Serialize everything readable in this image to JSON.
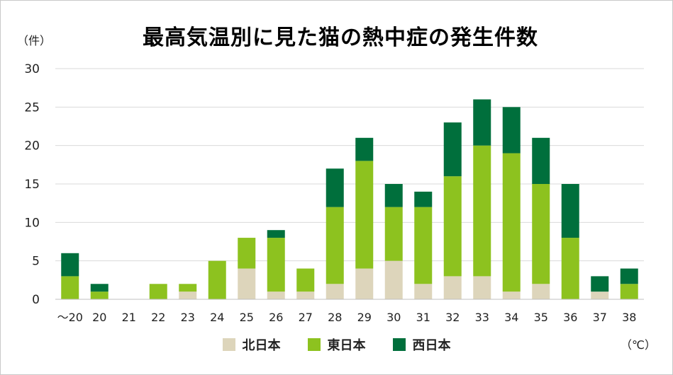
{
  "chart_data": {
    "type": "bar",
    "stacked": true,
    "title": "最高気温別に見た猫の熱中症の発生件数",
    "ylabel": "（件）",
    "xlabel": "（℃）",
    "ylim": [
      0,
      30
    ],
    "yticks": [
      "0",
      "5",
      "10",
      "15",
      "20",
      "25",
      "30"
    ],
    "categories": [
      "～20",
      "20",
      "21",
      "22",
      "23",
      "24",
      "25",
      "26",
      "27",
      "28",
      "29",
      "30",
      "31",
      "32",
      "33",
      "34",
      "35",
      "36",
      "37",
      "38"
    ],
    "series": [
      {
        "name": "北日本",
        "color": "#ddd5bb",
        "values": [
          0,
          0,
          0,
          0,
          1,
          0,
          4,
          1,
          1,
          2,
          4,
          5,
          2,
          3,
          3,
          1,
          2,
          0,
          1,
          0
        ]
      },
      {
        "name": "東日本",
        "color": "#8dc21f",
        "values": [
          3,
          1,
          0,
          2,
          1,
          5,
          4,
          7,
          3,
          10,
          14,
          7,
          10,
          13,
          17,
          18,
          13,
          8,
          0,
          2
        ]
      },
      {
        "name": "西日本",
        "color": "#006f3c",
        "values": [
          3,
          1,
          0,
          0,
          0,
          0,
          0,
          1,
          0,
          5,
          3,
          3,
          2,
          7,
          6,
          6,
          6,
          7,
          2,
          2
        ]
      }
    ],
    "grid": true,
    "legend": "bottom-center"
  }
}
